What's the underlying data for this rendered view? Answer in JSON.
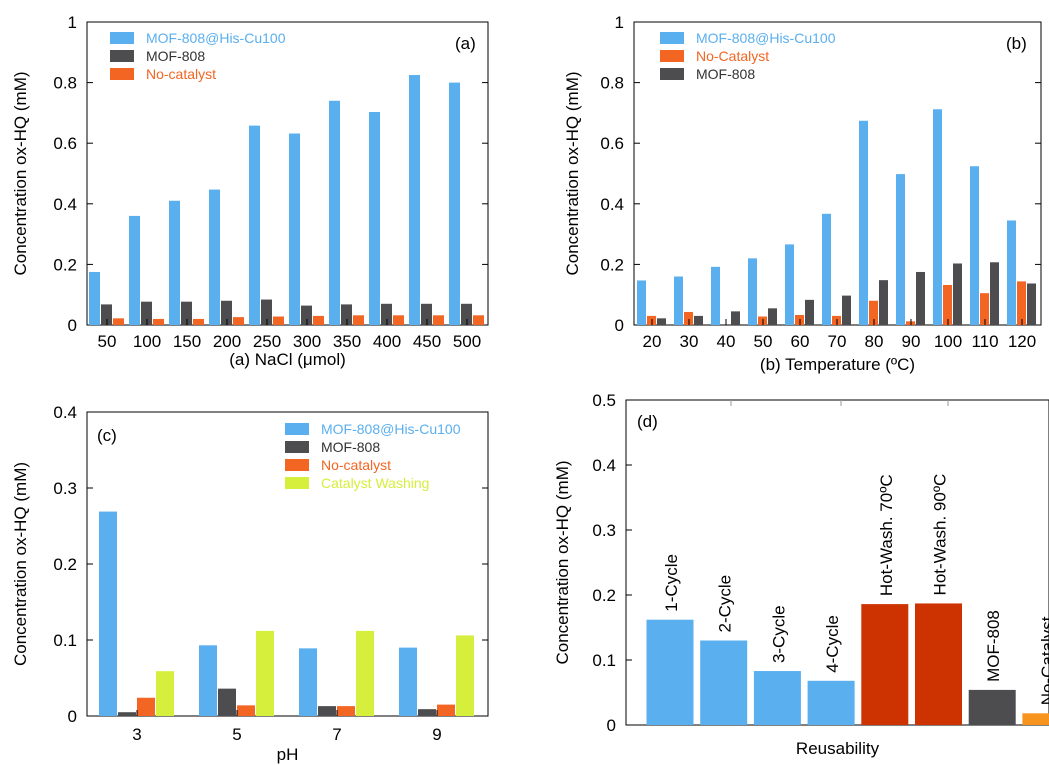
{
  "colors": {
    "blue": "#5aafef",
    "dark": "#4d4d4f",
    "orange": "#f26522",
    "lime": "#d6ef3c",
    "red": "#cc3300",
    "lightorange": "#f7941d"
  },
  "chart_data": [
    {
      "id": "a",
      "type": "bar",
      "panel_label": "(a)",
      "xlabel": "(a) NaCl (μmol)",
      "ylabel": "Concentration ox-HQ (mM)",
      "ylim": [
        0,
        1
      ],
      "yticks": [
        "0",
        "0.2",
        "0.4",
        "0.6",
        "0.8",
        "1"
      ],
      "legend_position": "top-left",
      "categories": [
        "50",
        "100",
        "150",
        "200",
        "250",
        "300",
        "350",
        "400",
        "450",
        "500"
      ],
      "series": [
        {
          "name": "MOF-808@His-Cu100",
          "color": "blue",
          "values": [
            0.175,
            0.36,
            0.41,
            0.447,
            0.658,
            0.632,
            0.74,
            0.703,
            0.825,
            0.8
          ]
        },
        {
          "name": "MOF-808",
          "color": "dark",
          "values": [
            0.068,
            0.077,
            0.077,
            0.08,
            0.084,
            0.064,
            0.068,
            0.07,
            0.07,
            0.07
          ]
        },
        {
          "name": "No-catalyst",
          "color": "orange",
          "values": [
            0.022,
            0.02,
            0.02,
            0.026,
            0.028,
            0.03,
            0.032,
            0.032,
            0.032,
            0.032
          ]
        }
      ]
    },
    {
      "id": "b",
      "type": "bar",
      "panel_label": "(b)",
      "xlabel": "(b) Temperature (ºC)",
      "ylabel": "Concentration ox-HQ (mM)",
      "ylim": [
        0,
        1
      ],
      "yticks": [
        "0",
        "0.2",
        "0.4",
        "0.6",
        "0.8",
        "1"
      ],
      "legend_position": "top-left",
      "categories": [
        "20",
        "30",
        "40",
        "50",
        "60",
        "70",
        "80",
        "90",
        "100",
        "110",
        "120"
      ],
      "series": [
        {
          "name": "MOF-808@His-Cu100",
          "color": "blue",
          "values": [
            0.147,
            0.16,
            0.192,
            0.22,
            0.266,
            0.367,
            0.674,
            0.498,
            0.712,
            0.524,
            0.345
          ]
        },
        {
          "name": "No-Catalyst",
          "color": "orange",
          "values": [
            0.03,
            0.043,
            0.0,
            0.028,
            0.033,
            0.03,
            0.08,
            0.012,
            0.132,
            0.105,
            0.144
          ]
        },
        {
          "name": "MOF-808",
          "color": "dark",
          "values": [
            0.022,
            0.03,
            0.045,
            0.055,
            0.083,
            0.097,
            0.148,
            0.175,
            0.203,
            0.207,
            0.137
          ]
        }
      ],
      "bar_order": [
        "MOF-808@His-Cu100",
        "No-Catalyst",
        "MOF-808"
      ]
    },
    {
      "id": "c",
      "type": "bar",
      "panel_label": "(c)",
      "xlabel": "pH",
      "ylabel": "Concentration ox-HQ (mM)",
      "ylim": [
        0,
        0.4
      ],
      "yticks": [
        "0",
        "0.1",
        "0.2",
        "0.3",
        "0.4"
      ],
      "legend_position": "top-right",
      "categories": [
        "3",
        "5",
        "7",
        "9"
      ],
      "series": [
        {
          "name": "MOF-808@His-Cu100",
          "color": "blue",
          "values": [
            0.269,
            0.093,
            0.089,
            0.09
          ]
        },
        {
          "name": "MOF-808",
          "color": "dark",
          "values": [
            0.005,
            0.036,
            0.013,
            0.009
          ]
        },
        {
          "name": "No-catalyst",
          "color": "orange",
          "values": [
            0.024,
            0.014,
            0.013,
            0.015
          ]
        },
        {
          "name": "Catalyst Washing",
          "color": "lime",
          "values": [
            0.059,
            0.112,
            0.112,
            0.106
          ]
        }
      ]
    },
    {
      "id": "d",
      "type": "bar",
      "panel_label": "(d)",
      "xlabel": "Reusability",
      "ylabel": "Concentration ox-HQ (mM)",
      "ylim": [
        0,
        0.5
      ],
      "yticks": [
        "0",
        "0.1",
        "0.2",
        "0.3",
        "0.4",
        "0.5"
      ],
      "categories": [
        "1-Cycle",
        "2-Cycle",
        "3-Cycle",
        "4-Cycle",
        "Hot-Wash. 70ºC",
        "Hot-Wash. 90ºC",
        "MOF-808",
        "No-Catalyst"
      ],
      "values": [
        0.162,
        0.13,
        0.083,
        0.068,
        0.186,
        0.187,
        0.054,
        0.018
      ],
      "bar_colors": [
        "blue",
        "blue",
        "blue",
        "blue",
        "red",
        "red",
        "dark",
        "lightorange"
      ]
    }
  ]
}
